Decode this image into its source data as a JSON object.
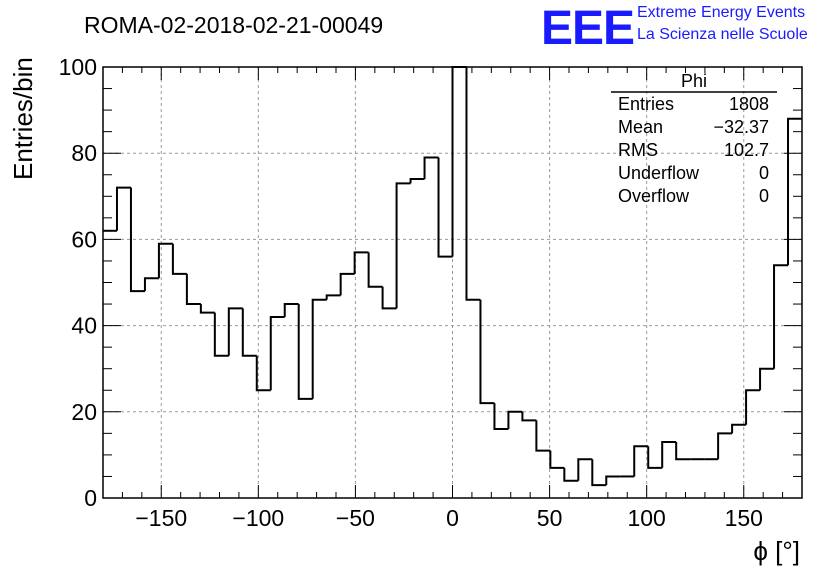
{
  "chart_data": {
    "type": "bar",
    "title": "ROMA-02-2018-02-21-00049",
    "xlabel": "ϕ [°]",
    "ylabel": "Entries/bin",
    "xlim": [
      -180,
      180
    ],
    "ylim": [
      0,
      105
    ],
    "grid": true,
    "bin_edges_start": -180,
    "bin_width": 7.2,
    "values": [
      62,
      72,
      48,
      51,
      59,
      52,
      45,
      43,
      33,
      44,
      33,
      25,
      42,
      45,
      23,
      46,
      47,
      52,
      57,
      49,
      44,
      73,
      74,
      79,
      56,
      100,
      46,
      22,
      16,
      20,
      18,
      11,
      7,
      4,
      9,
      3,
      5,
      5,
      12,
      7,
      13,
      9,
      9,
      9,
      15,
      17,
      25,
      30,
      54,
      88
    ],
    "x_ticks": [
      -150,
      -100,
      -50,
      0,
      50,
      100,
      150
    ],
    "x_tick_labels": [
      "−150",
      "−100",
      "−50",
      "0",
      "50",
      "100",
      "150"
    ],
    "y_ticks": [
      0,
      20,
      40,
      60,
      80,
      100
    ],
    "y_tick_labels": [
      "0",
      "20",
      "40",
      "60",
      "80",
      "100"
    ],
    "stats_box": {
      "name": "Phi",
      "rows": [
        {
          "label": "Entries",
          "value": "1808"
        },
        {
          "label": "Mean",
          "value": "−32.37"
        },
        {
          "label": "RMS",
          "value": "102.7"
        },
        {
          "label": "Underflow",
          "value": "0"
        },
        {
          "label": "Overflow",
          "value": "0"
        }
      ]
    }
  },
  "logo": {
    "mark": "EEE",
    "line1": "Extreme Energy Events",
    "line2": "La Scienza nelle Scuole",
    "color": "#1a1aff"
  }
}
